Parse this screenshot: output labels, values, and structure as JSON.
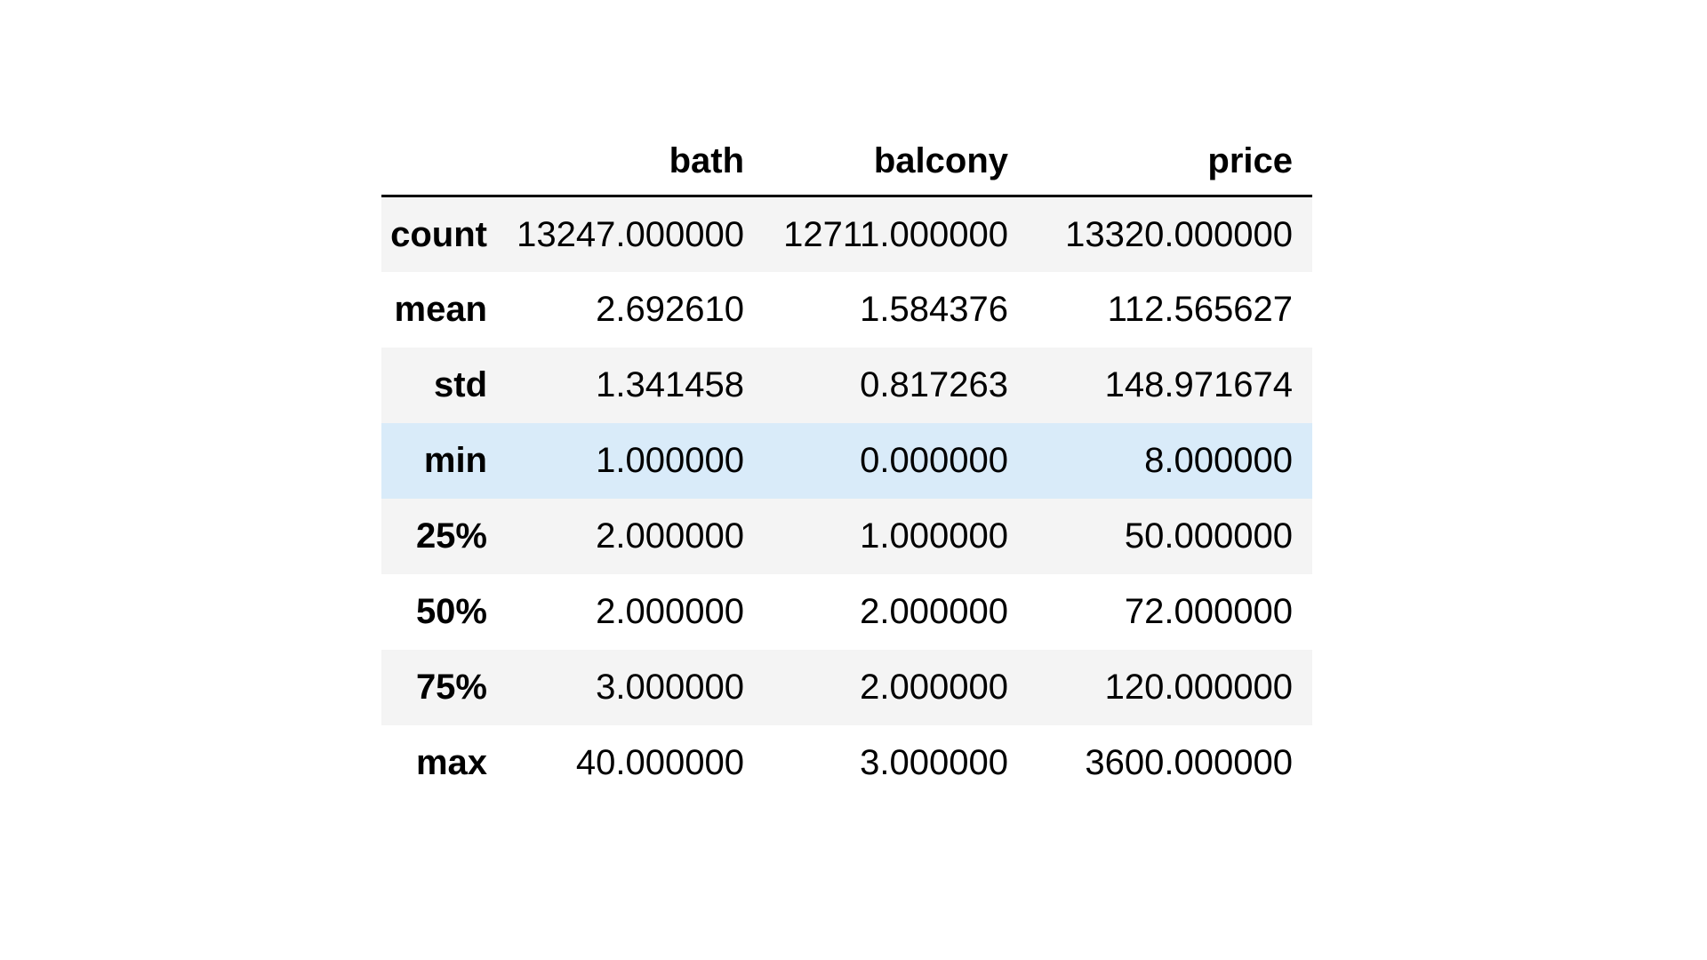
{
  "table": {
    "columns": [
      "",
      "bath",
      "balcony",
      "price"
    ],
    "rows": [
      {
        "label": "count",
        "values": [
          "13247.000000",
          "12711.000000",
          "13320.000000"
        ],
        "highlighted": false
      },
      {
        "label": "mean",
        "values": [
          "2.692610",
          "1.584376",
          "112.565627"
        ],
        "highlighted": false
      },
      {
        "label": "std",
        "values": [
          "1.341458",
          "0.817263",
          "148.971674"
        ],
        "highlighted": false
      },
      {
        "label": "min",
        "values": [
          "1.000000",
          "0.000000",
          "8.000000"
        ],
        "highlighted": true
      },
      {
        "label": "25%",
        "values": [
          "2.000000",
          "1.000000",
          "50.000000"
        ],
        "highlighted": false
      },
      {
        "label": "50%",
        "values": [
          "2.000000",
          "2.000000",
          "72.000000"
        ],
        "highlighted": false
      },
      {
        "label": "75%",
        "values": [
          "3.000000",
          "2.000000",
          "120.000000"
        ],
        "highlighted": false
      },
      {
        "label": "max",
        "values": [
          "40.000000",
          "3.000000",
          "3600.000000"
        ],
        "highlighted": false
      }
    ]
  },
  "colors": {
    "stripe": "#f4f4f4",
    "hover": "#d9ebf9",
    "background": "#ffffff",
    "rule": "#000000"
  }
}
